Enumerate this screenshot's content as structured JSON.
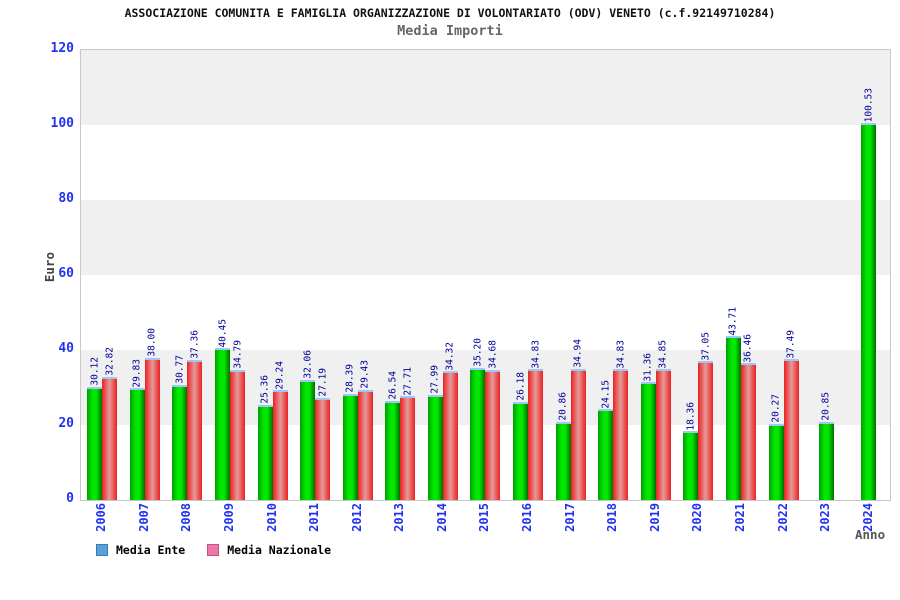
{
  "title": "ASSOCIAZIONE COMUNITA E FAMIGLIA ORGANIZZAZIONE DI VOLONTARIATO (ODV) VENETO (c.f.92149710284)",
  "subtitle": "Media Importi",
  "y_axis": {
    "label": "Euro",
    "ticks": [
      0,
      20,
      40,
      60,
      80,
      100,
      120
    ]
  },
  "x_axis": {
    "label": "Anno"
  },
  "legend": [
    {
      "label": "Media Ente",
      "swatch_color": "#55a0dd",
      "swatch_border": "#3a7ab0"
    },
    {
      "label": "Media Nazionale",
      "swatch_color": "#ee77aa",
      "swatch_border": "#c05585"
    }
  ],
  "colors": {
    "bar_ente": "#00c000",
    "bar_nazionale": "#ee2020",
    "bar_top_cap": "#9ec7f5",
    "tick_text": "#2233ee",
    "value_text": "#000099",
    "band_gray": "#f0f0f0",
    "plot_border": "#c8c8c8"
  },
  "chart_data": {
    "type": "bar",
    "title": "Media Importi",
    "xlabel": "Anno",
    "ylabel": "Euro",
    "ylim": [
      0,
      120
    ],
    "grid": "horizontal-bands",
    "legend_position": "bottom-left",
    "categories": [
      "2006",
      "2007",
      "2008",
      "2009",
      "2010",
      "2011",
      "2012",
      "2013",
      "2014",
      "2015",
      "2016",
      "2017",
      "2018",
      "2019",
      "2020",
      "2021",
      "2022",
      "2023",
      "2024"
    ],
    "series": [
      {
        "name": "Media Ente",
        "values": [
          30.12,
          29.83,
          30.77,
          40.45,
          25.36,
          32.06,
          28.39,
          26.54,
          27.99,
          35.2,
          26.18,
          20.86,
          24.15,
          31.36,
          18.36,
          43.71,
          20.27,
          20.85,
          100.53
        ]
      },
      {
        "name": "Media Nazionale",
        "values": [
          32.82,
          38.0,
          37.36,
          34.79,
          29.24,
          27.19,
          29.43,
          27.71,
          34.32,
          34.68,
          34.83,
          34.94,
          34.83,
          34.85,
          37.05,
          36.46,
          37.49,
          null,
          null
        ]
      }
    ]
  }
}
